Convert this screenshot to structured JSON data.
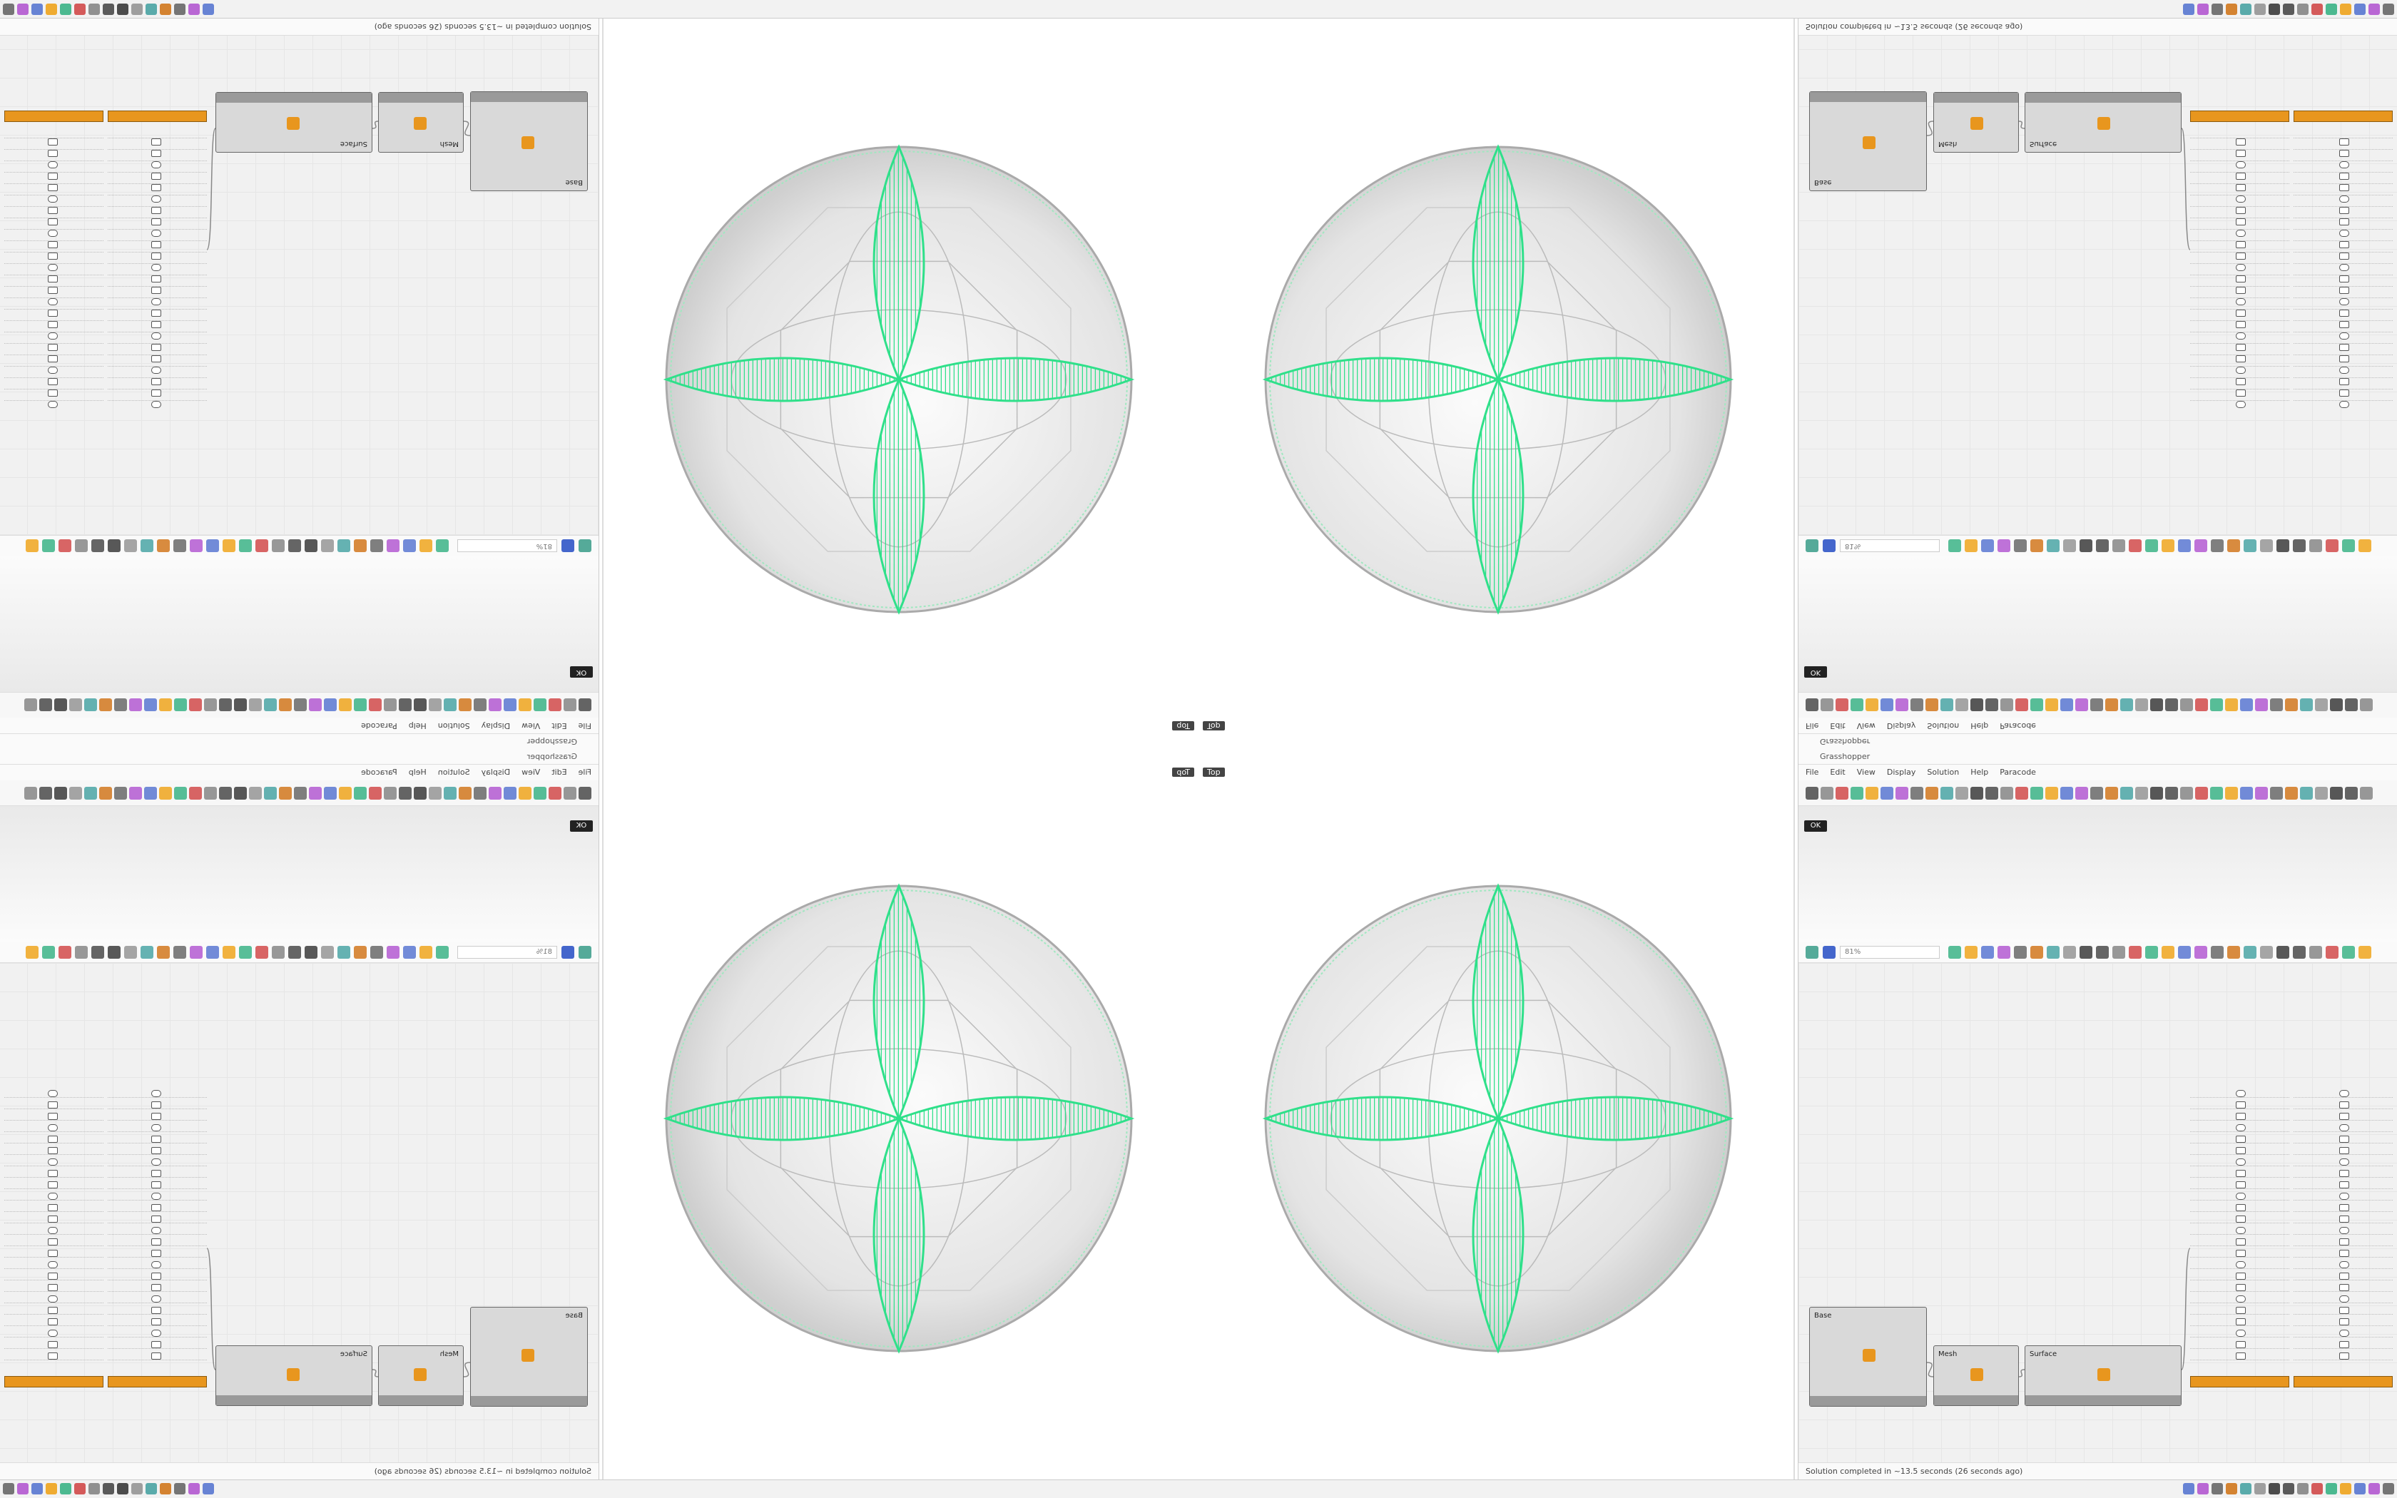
{
  "window": {
    "title": "Grasshopper",
    "menu": [
      "File",
      "Edit",
      "View",
      "Display",
      "Solution",
      "Help",
      "Paracode"
    ],
    "zoom": "81%",
    "ok": "OK",
    "status": "Solution completed in ~13.5 seconds (26 seconds ago)"
  },
  "viewport": {
    "label": "Top"
  },
  "nodes": [
    {
      "label": "Base"
    },
    {
      "label": "Mesh"
    },
    {
      "label": "Surface"
    }
  ]
}
